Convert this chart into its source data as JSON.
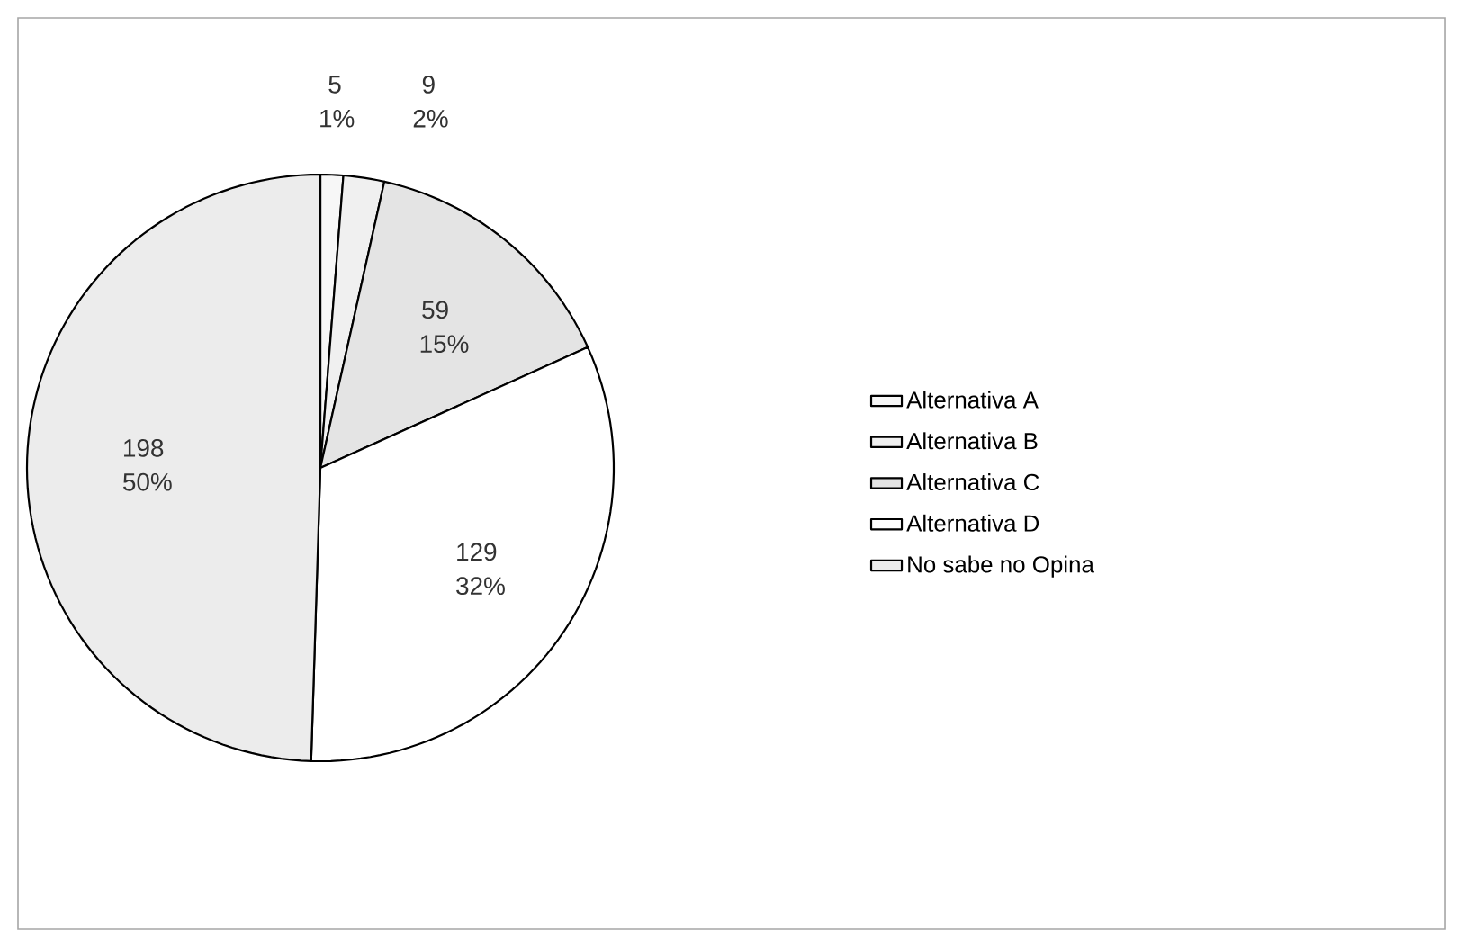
{
  "chart_data": {
    "type": "pie",
    "categories": [
      "Alternativa A",
      "Alternativa B",
      "Alternativa C",
      "Alternativa D",
      "No sabe no Opina"
    ],
    "values": [
      5,
      9,
      59,
      129,
      198
    ],
    "value_labels": [
      "5 1%",
      "9 2%",
      "59 15%",
      "129 32%",
      "198 50%"
    ],
    "colors": [
      "#f7f7f7",
      "#f0f0f0",
      "#e4e4e4",
      "#ffffff",
      "#ececec"
    ],
    "legend": "right"
  }
}
